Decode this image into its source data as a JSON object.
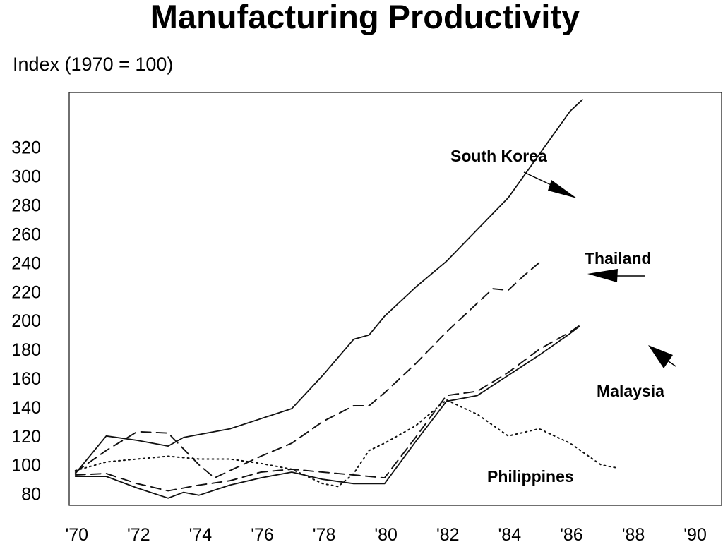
{
  "chart_data": {
    "type": "line",
    "title": "Manufacturing Productivity",
    "ylabel": "Index (1970 = 100)",
    "xlabel": "",
    "x": [
      1970,
      1971,
      1972,
      1973,
      1974,
      1975,
      1976,
      1977,
      1978,
      1979,
      1980,
      1981,
      1982,
      1983,
      1984,
      1985,
      1986,
      1987,
      1988,
      1989,
      1990
    ],
    "x_tick_labels": [
      "'70",
      "'72",
      "'74",
      "'76",
      "'78",
      "'80",
      "'82",
      "'84",
      "'86",
      "'88",
      "'90"
    ],
    "y_ticks": [
      80,
      100,
      120,
      140,
      160,
      180,
      200,
      220,
      240,
      260,
      280,
      300,
      320
    ],
    "ylim": [
      72,
      358
    ],
    "xlim": [
      1969.8,
      1990.9
    ],
    "grid": false,
    "series": [
      {
        "name": "South Korea",
        "style": "solid",
        "points": [
          [
            1970,
            94
          ],
          [
            1971,
            120
          ],
          [
            1972,
            117
          ],
          [
            1973,
            113
          ],
          [
            1973.5,
            119
          ],
          [
            1974,
            121
          ],
          [
            1975,
            125
          ],
          [
            1976,
            132
          ],
          [
            1977,
            139
          ],
          [
            1978,
            162
          ],
          [
            1979,
            187
          ],
          [
            1979.5,
            190
          ],
          [
            1980,
            203
          ],
          [
            1981,
            223
          ],
          [
            1982,
            241
          ],
          [
            1983,
            263
          ],
          [
            1984,
            285
          ],
          [
            1985,
            315
          ],
          [
            1986,
            345
          ],
          [
            1986.4,
            353
          ]
        ]
      },
      {
        "name": "Thailand",
        "style": "dashed",
        "points": [
          [
            1970,
            95
          ],
          [
            1971,
            110
          ],
          [
            1972,
            123
          ],
          [
            1973,
            122
          ],
          [
            1974,
            100
          ],
          [
            1974.5,
            91
          ],
          [
            1975,
            96
          ],
          [
            1976,
            106
          ],
          [
            1977,
            115
          ],
          [
            1978,
            130
          ],
          [
            1979,
            141
          ],
          [
            1979.5,
            141
          ],
          [
            1980,
            150
          ],
          [
            1981,
            170
          ],
          [
            1982,
            192
          ],
          [
            1983,
            212
          ],
          [
            1983.5,
            222
          ],
          [
            1984,
            221
          ],
          [
            1984.5,
            231
          ],
          [
            1985,
            240
          ]
        ]
      },
      {
        "name": "Malaysia",
        "style": "dashed",
        "points": [
          [
            1970,
            93
          ],
          [
            1971,
            94
          ],
          [
            1972,
            87
          ],
          [
            1973,
            82
          ],
          [
            1973.5,
            84
          ],
          [
            1974,
            86
          ],
          [
            1975,
            89
          ],
          [
            1976,
            95
          ],
          [
            1977,
            97
          ],
          [
            1978,
            95
          ],
          [
            1979,
            93
          ],
          [
            1980,
            91
          ],
          [
            1981,
            119
          ],
          [
            1982,
            148
          ],
          [
            1983,
            151
          ],
          [
            1984,
            164
          ],
          [
            1985,
            180
          ],
          [
            1986,
            192
          ],
          [
            1986.4,
            198
          ]
        ]
      },
      {
        "name": "Malaysia",
        "style": "solid",
        "points": [
          [
            1970,
            92
          ],
          [
            1971,
            92
          ],
          [
            1972,
            84
          ],
          [
            1973,
            77
          ],
          [
            1973.5,
            81
          ],
          [
            1974,
            79
          ],
          [
            1975,
            86
          ],
          [
            1976,
            91
          ],
          [
            1977,
            95
          ],
          [
            1978,
            90
          ],
          [
            1979,
            87
          ],
          [
            1980,
            87
          ],
          [
            1981,
            116
          ],
          [
            1982,
            144
          ],
          [
            1983,
            148
          ],
          [
            1984,
            162
          ],
          [
            1985,
            176
          ],
          [
            1986,
            191
          ],
          [
            1986.3,
            196
          ]
        ]
      },
      {
        "name": "Philippines",
        "style": "dotted",
        "points": [
          [
            1970,
            96
          ],
          [
            1971,
            102
          ],
          [
            1972,
            104
          ],
          [
            1973,
            106
          ],
          [
            1974,
            104
          ],
          [
            1975,
            104
          ],
          [
            1976,
            101
          ],
          [
            1977,
            97
          ],
          [
            1978,
            87
          ],
          [
            1978.5,
            85
          ],
          [
            1979,
            94
          ],
          [
            1979.5,
            110
          ],
          [
            1980,
            115
          ],
          [
            1981,
            127
          ],
          [
            1982,
            145
          ],
          [
            1983,
            135
          ],
          [
            1984,
            120
          ],
          [
            1985,
            125
          ],
          [
            1986,
            115
          ],
          [
            1987,
            100
          ],
          [
            1987.5,
            98
          ]
        ]
      }
    ],
    "annotations": [
      {
        "text": "South Korea",
        "series": "South Korea"
      },
      {
        "text": "Thailand",
        "series": "Thailand"
      },
      {
        "text": "Malaysia",
        "series": "Malaysia"
      },
      {
        "text": "Philippines",
        "series": "Philippines"
      }
    ]
  }
}
